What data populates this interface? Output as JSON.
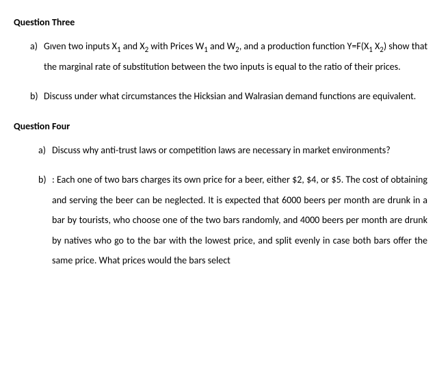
{
  "q3": {
    "heading": "Question Three",
    "items": {
      "a": {
        "label": "a)",
        "pre": "Gıven two inputs X",
        "s1": "1",
        "mid1": " and X",
        "s2": "2",
        "mid2": " with Prices W",
        "s3": "1",
        "mid3": " and W",
        "s4": "2",
        "mid4": ", and a production function Y=F(X",
        "s5": "1",
        "mid5": " X",
        "s6": "2",
        "post": ") show that the marginal rate of substitution between the two inputs is equal to the ratio of their prices."
      },
      "b": {
        "label": "b)",
        "text": "Discuss under what circumstances the Hicksian and Walrasian demand functions are equivalent."
      }
    }
  },
  "q4": {
    "heading": "Question Four",
    "items": {
      "a": {
        "label": "a)",
        "text": "Discuss why anti-trust laws or competition laws are necessary in market environments?"
      },
      "b": {
        "label": "b)",
        "text": ": Each one of two bars charges its own price for a beer, either $2, $4, or $5. The cost of obtaining and serving the beer can be neglected. It is expected that 6000 beers per month are drunk in a bar by tourists, who choose one of the two bars randomly, and 4000 beers per month are drunk by natives who go to the bar with the lowest price, and split evenly in case both bars offer the same price. What prices would the bars select"
      }
    }
  }
}
